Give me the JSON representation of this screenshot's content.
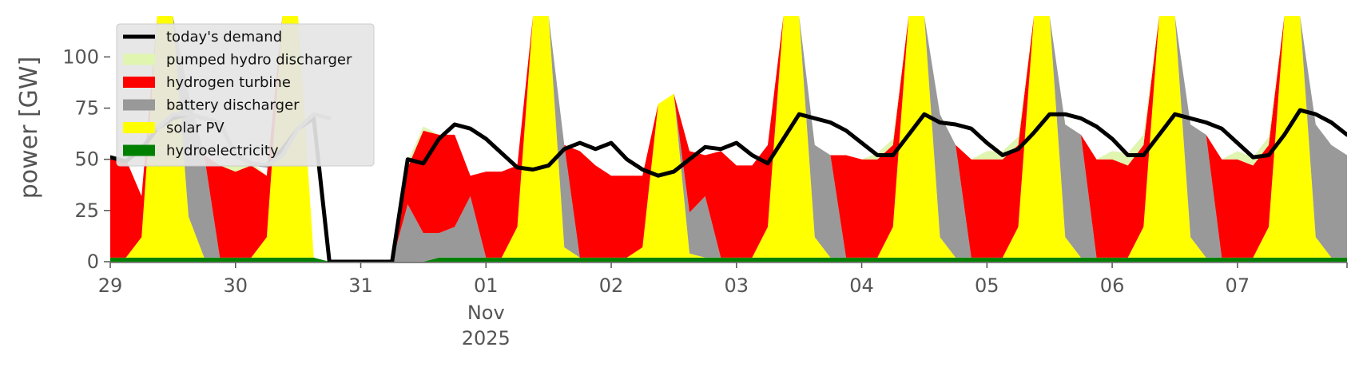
{
  "chart_data": {
    "type": "area",
    "title": "",
    "xlabel": "",
    "ylabel": "power [GW]",
    "x_tick_labels": [
      "29",
      "30",
      "31",
      "01",
      "02",
      "03",
      "04",
      "05",
      "06",
      "07"
    ],
    "x_tick_sublabels": [
      "Nov",
      "2025"
    ],
    "ylim": [
      0,
      120
    ],
    "y_ticks": [
      0,
      25,
      50,
      75,
      100
    ],
    "grid": false,
    "legend_position": "top-left",
    "x": [
      "2025-10-29 00:00",
      "2025-10-29 03:00",
      "2025-10-29 06:00",
      "2025-10-29 09:00",
      "2025-10-29 12:00",
      "2025-10-29 15:00",
      "2025-10-29 18:00",
      "2025-10-29 21:00",
      "2025-10-30 00:00",
      "2025-10-30 03:00",
      "2025-10-30 06:00",
      "2025-10-30 09:00",
      "2025-10-30 12:00",
      "2025-10-30 15:00",
      "2025-10-30 18:00",
      "2025-10-30 21:00",
      "2025-10-31 00:00",
      "2025-10-31 03:00",
      "2025-10-31 06:00",
      "2025-10-31 09:00",
      "2025-10-31 12:00",
      "2025-10-31 15:00",
      "2025-10-31 18:00",
      "2025-10-31 21:00",
      "2025-11-01 00:00",
      "2025-11-01 03:00",
      "2025-11-01 06:00",
      "2025-11-01 09:00",
      "2025-11-01 12:00",
      "2025-11-01 15:00",
      "2025-11-01 18:00",
      "2025-11-01 21:00",
      "2025-11-02 00:00",
      "2025-11-02 03:00",
      "2025-11-02 06:00",
      "2025-11-02 09:00",
      "2025-11-02 12:00",
      "2025-11-02 15:00",
      "2025-11-02 18:00",
      "2025-11-02 21:00",
      "2025-11-03 00:00",
      "2025-11-03 03:00",
      "2025-11-03 06:00",
      "2025-11-03 09:00",
      "2025-11-03 12:00",
      "2025-11-03 15:00",
      "2025-11-03 18:00",
      "2025-11-03 21:00",
      "2025-11-04 00:00",
      "2025-11-04 03:00",
      "2025-11-04 06:00",
      "2025-11-04 09:00",
      "2025-11-04 12:00",
      "2025-11-04 15:00",
      "2025-11-04 18:00",
      "2025-11-04 21:00",
      "2025-11-05 00:00",
      "2025-11-05 03:00",
      "2025-11-05 06:00",
      "2025-11-05 09:00",
      "2025-11-05 12:00",
      "2025-11-05 15:00",
      "2025-11-05 18:00",
      "2025-11-05 21:00",
      "2025-11-06 00:00",
      "2025-11-06 03:00",
      "2025-11-06 06:00",
      "2025-11-06 09:00",
      "2025-11-06 12:00",
      "2025-11-06 15:00",
      "2025-11-06 18:00",
      "2025-11-06 21:00",
      "2025-11-07 00:00",
      "2025-11-07 03:00",
      "2025-11-07 06:00",
      "2025-11-07 09:00",
      "2025-11-07 12:00",
      "2025-11-07 15:00",
      "2025-11-07 18:00",
      "2025-11-07 21:00"
    ],
    "series": [
      {
        "name": "hydroelectricity",
        "color": "#008000",
        "kind": "area",
        "values": [
          2,
          2,
          2,
          2,
          2,
          2,
          2,
          2,
          2,
          2,
          2,
          2,
          2,
          2,
          0,
          0,
          0,
          0,
          0,
          0,
          0,
          2,
          2,
          2,
          2,
          2,
          2,
          2,
          2,
          2,
          2,
          2,
          2,
          2,
          2,
          2,
          2,
          2,
          2,
          2,
          2,
          2,
          2,
          2,
          2,
          2,
          2,
          2,
          2,
          2,
          2,
          2,
          2,
          2,
          2,
          2,
          2,
          2,
          2,
          2,
          2,
          2,
          2,
          2,
          2,
          2,
          2,
          2,
          2,
          2,
          2,
          2,
          2,
          2,
          2,
          2,
          2,
          2,
          2,
          2
        ]
      },
      {
        "name": "solar PV",
        "color": "#ffff00",
        "kind": "area",
        "values": [
          0,
          0,
          10,
          120,
          120,
          20,
          0,
          0,
          0,
          0,
          10,
          120,
          120,
          0,
          0,
          0,
          0,
          0,
          0,
          0,
          0,
          0,
          0,
          0,
          0,
          0,
          15,
          120,
          120,
          5,
          0,
          0,
          0,
          0,
          5,
          75,
          80,
          2,
          0,
          0,
          0,
          0,
          15,
          120,
          120,
          10,
          0,
          0,
          0,
          0,
          15,
          120,
          120,
          10,
          0,
          0,
          0,
          0,
          15,
          120,
          120,
          10,
          0,
          0,
          0,
          0,
          15,
          120,
          120,
          10,
          0,
          0,
          0,
          0,
          15,
          120,
          120,
          10,
          0,
          0
        ]
      },
      {
        "name": "battery discharger",
        "color": "#999999",
        "kind": "area",
        "values": [
          0,
          0,
          0,
          0,
          5,
          60,
          50,
          0,
          0,
          0,
          0,
          0,
          0,
          0,
          0,
          0,
          0,
          0,
          0,
          28,
          14,
          12,
          15,
          30,
          0,
          0,
          0,
          0,
          40,
          50,
          0,
          0,
          0,
          0,
          0,
          0,
          0,
          20,
          30,
          0,
          0,
          0,
          0,
          0,
          0,
          45,
          50,
          0,
          0,
          0,
          0,
          0,
          0,
          60,
          55,
          0,
          0,
          0,
          0,
          0,
          0,
          55,
          60,
          0,
          0,
          0,
          0,
          0,
          0,
          55,
          60,
          0,
          0,
          0,
          0,
          0,
          0,
          55,
          55,
          50
        ]
      },
      {
        "name": "hydrogen turbine",
        "color": "#ff0000",
        "kind": "area",
        "values": [
          48,
          48,
          20,
          0,
          0,
          0,
          0,
          45,
          42,
          45,
          30,
          0,
          0,
          0,
          0,
          0,
          0,
          0,
          0,
          18,
          50,
          48,
          45,
          10,
          42,
          42,
          30,
          0,
          0,
          0,
          52,
          45,
          40,
          40,
          35,
          0,
          0,
          30,
          20,
          52,
          45,
          45,
          40,
          0,
          0,
          0,
          0,
          50,
          48,
          48,
          40,
          0,
          0,
          0,
          0,
          48,
          48,
          48,
          40,
          0,
          0,
          0,
          0,
          48,
          48,
          45,
          40,
          0,
          0,
          0,
          0,
          48,
          48,
          45,
          40,
          0,
          0,
          0,
          0,
          0
        ]
      },
      {
        "name": "pumped hydro discharger",
        "color": "#dff5b0",
        "kind": "area",
        "values": [
          0,
          0,
          0,
          0,
          0,
          0,
          0,
          0,
          3,
          2,
          0,
          0,
          0,
          0,
          0,
          0,
          0,
          0,
          0,
          3,
          2,
          0,
          0,
          0,
          0,
          0,
          0,
          0,
          0,
          0,
          0,
          0,
          0,
          0,
          0,
          0,
          0,
          0,
          0,
          0,
          0,
          0,
          0,
          0,
          0,
          0,
          0,
          0,
          0,
          3,
          3,
          0,
          0,
          0,
          0,
          0,
          4,
          4,
          4,
          0,
          0,
          0,
          0,
          0,
          4,
          6,
          5,
          0,
          0,
          0,
          0,
          0,
          4,
          4,
          4,
          0,
          0,
          0,
          0,
          0
        ]
      },
      {
        "name": "today's demand",
        "color": "#000000",
        "kind": "line",
        "values": [
          51,
          49,
          55,
          65,
          70,
          72,
          70,
          68,
          52,
          48,
          47,
          55,
          65,
          70,
          0,
          0,
          0,
          0,
          0,
          50,
          48,
          60,
          67,
          65,
          60,
          53,
          46,
          45,
          47,
          55,
          58,
          55,
          58,
          50,
          45,
          42,
          44,
          50,
          56,
          55,
          58,
          52,
          48,
          60,
          72,
          70,
          68,
          64,
          58,
          52,
          52,
          62,
          72,
          68,
          67,
          65,
          58,
          52,
          55,
          63,
          72,
          72,
          70,
          66,
          60,
          52,
          52,
          62,
          72,
          70,
          68,
          65,
          58,
          51,
          52,
          62,
          74,
          72,
          68,
          62
        ]
      },
      {
        "name": "",
        "color": "#aaaaaa",
        "kind": "line-partial",
        "values": [
          null,
          null,
          null,
          65,
          72,
          72,
          70,
          68,
          52,
          48,
          47,
          52,
          65,
          72,
          70,
          null,
          null,
          null,
          null,
          null,
          null,
          null,
          null,
          null,
          null,
          null,
          null,
          null,
          null,
          null,
          null,
          null,
          null,
          null,
          null,
          null,
          null,
          null,
          null,
          null,
          null,
          null,
          null,
          null,
          null,
          null,
          null,
          null,
          null,
          null,
          null,
          null,
          null,
          null,
          null,
          null,
          null,
          null,
          null,
          null,
          null,
          null,
          null,
          null,
          null,
          null,
          null,
          null,
          null,
          null,
          null,
          null,
          null,
          null,
          null,
          null,
          null,
          null,
          null,
          null
        ]
      }
    ]
  },
  "legend": {
    "items": [
      {
        "label": "today's demand",
        "color": "#000000",
        "kind": "line"
      },
      {
        "label": "pumped hydro discharger",
        "color": "#dff5b0",
        "kind": "patch"
      },
      {
        "label": "hydrogen turbine",
        "color": "#ff0000",
        "kind": "patch"
      },
      {
        "label": "battery discharger",
        "color": "#999999",
        "kind": "patch"
      },
      {
        "label": "solar PV",
        "color": "#ffff00",
        "kind": "patch"
      },
      {
        "label": "hydroelectricity",
        "color": "#008000",
        "kind": "patch"
      }
    ]
  }
}
